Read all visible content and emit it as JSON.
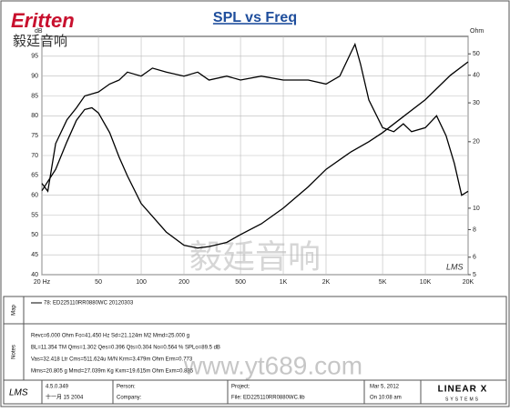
{
  "chart_data": {
    "type": "line",
    "title": "SPL vs Freq",
    "logo": "Eritten",
    "logo_cn": "毅廷音响",
    "ylabel": "dB",
    "y2label": "Ohm",
    "xlim": [
      20,
      20000
    ],
    "xlog": true,
    "xticks": [
      {
        "value": 20,
        "label": "20 Hz"
      },
      50,
      100,
      200,
      500,
      {
        "value": 1000,
        "label": "1K"
      },
      {
        "value": 2000,
        "label": "2K"
      },
      {
        "value": 5000,
        "label": "5K"
      },
      {
        "value": 10000,
        "label": "10K"
      },
      {
        "value": 20000,
        "label": "20K"
      }
    ],
    "ylim": [
      40,
      100
    ],
    "yticks": [
      40,
      45,
      50,
      55,
      60,
      65,
      70,
      75,
      80,
      85,
      90,
      95
    ],
    "y2lim": [
      5,
      60
    ],
    "y2log": true,
    "y2ticks": [
      5,
      6,
      8,
      10,
      20,
      30,
      40,
      50
    ],
    "grid": true,
    "series": [
      {
        "name": "78: ED225110RR0880WC 20120303",
        "color": "#000000",
        "x": [
          20,
          22,
          25,
          30,
          35,
          40,
          50,
          60,
          70,
          80,
          100,
          120,
          150,
          200,
          250,
          300,
          400,
          500,
          700,
          1000,
          1500,
          2000,
          2500,
          3000,
          3200,
          3500,
          4000,
          5000,
          6000,
          7000,
          8000,
          10000,
          12000,
          14000,
          16000,
          18000,
          20000
        ],
        "values": [
          63,
          61,
          73,
          79,
          82,
          85,
          86,
          88,
          89,
          91,
          90,
          92,
          91,
          90,
          91,
          89,
          90,
          89,
          90,
          89,
          89,
          88,
          90,
          96,
          98,
          93,
          84,
          77,
          76,
          78,
          76,
          77,
          80,
          75,
          68,
          60,
          61
        ]
      },
      {
        "color": "#000000",
        "axis": "y2",
        "x": [
          20,
          25,
          30,
          35,
          40,
          45,
          50,
          60,
          70,
          80,
          100,
          150,
          200,
          250,
          300,
          400,
          500,
          700,
          1000,
          1500,
          2000,
          3000,
          4000,
          5000,
          7000,
          10000,
          15000,
          20000
        ],
        "values": [
          12,
          15,
          20,
          25,
          28,
          28.5,
          27,
          22,
          17,
          14,
          10.5,
          7.8,
          6.8,
          6.6,
          6.7,
          7,
          7.6,
          8.5,
          10,
          12.5,
          15,
          18,
          20,
          22,
          26,
          31,
          40,
          46
        ]
      }
    ],
    "panel": {
      "map_label": "Map",
      "notes_label": "Notes",
      "notes": [
        "Revc=6.000 Ohm Fo=41.450 Hz Sd=21.124m M2 Mmd=25.000 g",
        "BL=11.354 TM Qms=1.302 Qes=0.396 Qts=0.304 No=0.564 % SPLo=89.5 dB",
        "Vas=32.418 Ltr Cms=511.624u M/N Krm=3.479m Ohm Erm=0.773",
        "Mms=20.805 g Mmd=27.039m Kg Kxm=19.615m Ohm Exm=0.835"
      ],
      "watermark": "www.yt689.com",
      "watermark_cn": "毅廷音响",
      "software": "LMS",
      "version": "4.5.0.349",
      "build_date": "十一月 15 2004",
      "person": "Person:",
      "company": "Company:",
      "project": "Project:",
      "file": "File: ED225110RR0880WC.lib",
      "date": "Mar 5, 2012",
      "time": "On 10:08 am",
      "brand": "LINEAR X",
      "brand_sub": "SYSTEMS",
      "plot_brand": "LMS"
    }
  }
}
